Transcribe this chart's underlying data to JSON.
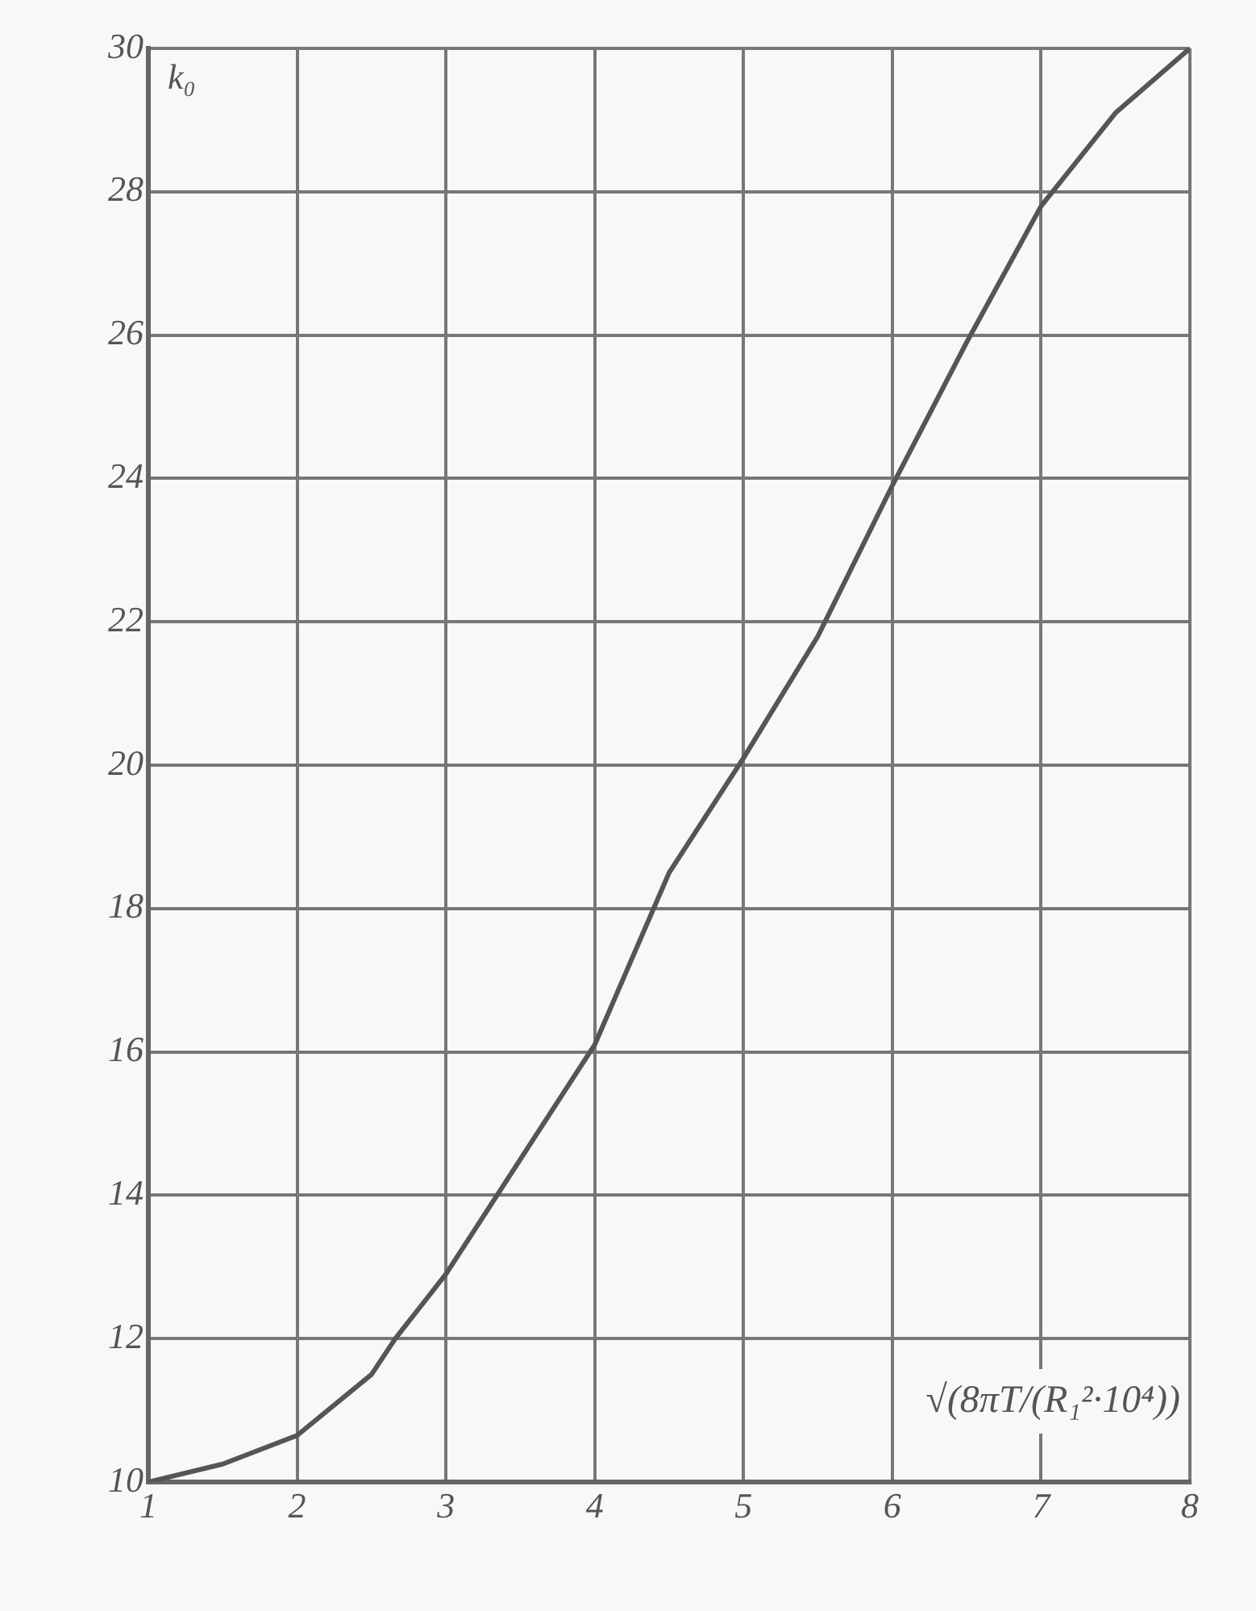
{
  "chart_data": {
    "type": "line",
    "xlabel": "√(8πT/(R₁²·10⁴))",
    "ylabel": "k₀",
    "x": [
      1,
      1.5,
      2,
      2.5,
      2.66,
      3,
      3.5,
      4,
      4.5,
      5,
      5.5,
      6,
      6.5,
      7,
      7.5,
      8
    ],
    "series": [
      {
        "color": "#555555",
        "values": [
          10,
          10.25,
          10.65,
          11.5,
          12,
          12.9,
          14.5,
          16.1,
          18.5,
          20.1,
          21.8,
          23.9,
          25.9,
          27.8,
          29.1,
          30
        ]
      }
    ],
    "xlim": [
      1,
      8
    ],
    "ylim": [
      10,
      30
    ],
    "xticks": [
      1,
      2,
      3,
      4,
      5,
      6,
      7,
      8
    ],
    "yticks": [
      10,
      12,
      14,
      16,
      18,
      20,
      22,
      24,
      26,
      28,
      30
    ],
    "grid": true,
    "legend": false,
    "marker": "none",
    "line_style": "solid"
  }
}
